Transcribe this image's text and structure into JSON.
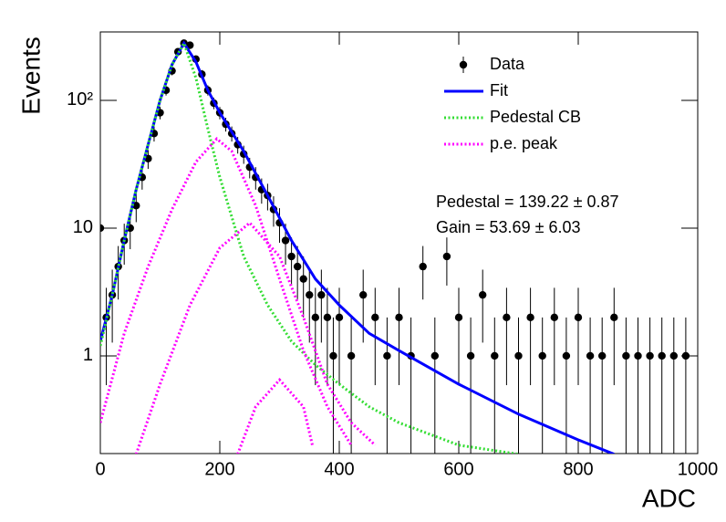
{
  "chart_data": {
    "type": "scatter-fit",
    "x_label": "ADC",
    "y_label": "Events",
    "log_y": true,
    "xlim": [
      0,
      1000
    ],
    "ylim": [
      0.172,
      343
    ],
    "xticks": [
      0,
      200,
      400,
      600,
      800,
      1000
    ],
    "yticks": [
      1,
      10,
      {
        "value": 100,
        "label": "10²"
      }
    ],
    "annotations": [
      "Pedestal = 139.22 ± 0.87",
      "Gain = 53.69 ± 6.03"
    ],
    "legend": "upper right",
    "data": {
      "name": "Data",
      "color": "#000000",
      "x": [
        0,
        10,
        20,
        30,
        40,
        50,
        60,
        70,
        80,
        90,
        100,
        110,
        120,
        130,
        140,
        150,
        160,
        170,
        180,
        190,
        200,
        210,
        220,
        230,
        240,
        250,
        260,
        270,
        280,
        290,
        300,
        310,
        320,
        330,
        340,
        350,
        360,
        370,
        380,
        390,
        400,
        420,
        440,
        460,
        480,
        500,
        520,
        540,
        560,
        580,
        600,
        620,
        640,
        660,
        680,
        700,
        720,
        740,
        760,
        780,
        800,
        820,
        840,
        860,
        880,
        900,
        920,
        940,
        960,
        980
      ],
      "values": [
        10,
        2,
        3,
        5,
        8,
        10,
        15,
        25,
        35,
        55,
        80,
        120,
        170,
        240,
        280,
        270,
        210,
        160,
        120,
        95,
        80,
        65,
        55,
        45,
        38,
        30,
        25,
        20,
        18,
        14,
        11,
        8,
        6,
        5,
        4,
        3,
        2,
        3,
        2,
        1,
        2,
        1,
        3,
        2,
        1,
        2,
        1,
        5,
        1,
        6,
        2,
        1,
        3,
        1,
        2,
        1,
        2,
        1,
        2,
        1,
        2,
        1,
        1,
        2,
        1,
        1,
        1,
        1,
        1,
        1
      ],
      "errors": [
        3.16,
        1.41,
        1.73,
        2.24,
        2.83,
        3.16,
        3.87,
        5,
        5.92,
        7.42,
        8.94,
        10.95,
        13.04,
        15.49,
        16.73,
        16.43,
        14.49,
        12.65,
        10.95,
        9.75,
        8.94,
        8.06,
        7.42,
        6.71,
        6.16,
        5.48,
        5,
        4.47,
        4.24,
        3.74,
        3.32,
        2.83,
        2.45,
        2.24,
        2,
        1.73,
        1.41,
        1.73,
        1.41,
        1,
        1.41,
        1,
        1.73,
        1.41,
        1,
        1.41,
        1,
        2.24,
        1,
        2.45,
        1.41,
        1,
        1.73,
        1,
        1.41,
        1,
        1.41,
        1,
        1.41,
        1,
        1.41,
        1,
        1,
        1.41,
        1,
        1,
        1,
        1,
        1,
        1
      ]
    },
    "series": [
      {
        "name": "Fit",
        "color": "#0000ff",
        "style": "solid",
        "curves": [
          {
            "x": [
              0,
              20,
              40,
              60,
              80,
              100,
              120,
              140,
              160,
              180,
              200,
              240,
              280,
              320,
              360,
              400,
              450,
              500,
              600,
              700,
              800,
              860
            ],
            "values": [
              1.3,
              3,
              8,
              20,
              45,
              100,
              190,
              280,
              200,
              120,
              80,
              40,
              18,
              8,
              4,
              2.5,
              1.5,
              1.1,
              0.6,
              0.35,
              0.22,
              0.17
            ]
          }
        ]
      },
      {
        "name": "Pedestal CB",
        "color": "#33dd33",
        "style": "dotted",
        "curves": [
          {
            "x": [
              0,
              20,
              40,
              60,
              80,
              100,
              120,
              140,
              160,
              180,
              200,
              240,
              280,
              320,
              360,
              400,
              450,
              500,
              600,
              700
            ],
            "values": [
              1.2,
              3,
              8,
              20,
              45,
              100,
              190,
              280,
              150,
              60,
              25,
              6,
              2.5,
              1.3,
              0.85,
              0.6,
              0.4,
              0.3,
              0.2,
              0.17
            ]
          }
        ]
      },
      {
        "name": "p.e. peak",
        "color": "#ff00ff",
        "style": "dotted",
        "curves": [
          {
            "x": [
              0,
              40,
              80,
              120,
              160,
              195,
              220,
              260,
              300,
              340,
              380,
              420
            ],
            "values": [
              0.3,
              1.5,
              5,
              14,
              33,
              50,
              40,
              15,
              4,
              1.1,
              0.4,
              0.2
            ]
          },
          {
            "x": [
              60,
              100,
              150,
              200,
              250,
              300,
              340,
              380,
              420,
              460
            ],
            "values": [
              0.17,
              0.6,
              2.5,
              7,
              11,
              6,
              2,
              0.6,
              0.3,
              0.2
            ]
          },
          {
            "x": [
              230,
              260,
              300,
              340,
              355
            ],
            "values": [
              0.17,
              0.4,
              0.65,
              0.4,
              0.2
            ]
          }
        ]
      }
    ]
  }
}
